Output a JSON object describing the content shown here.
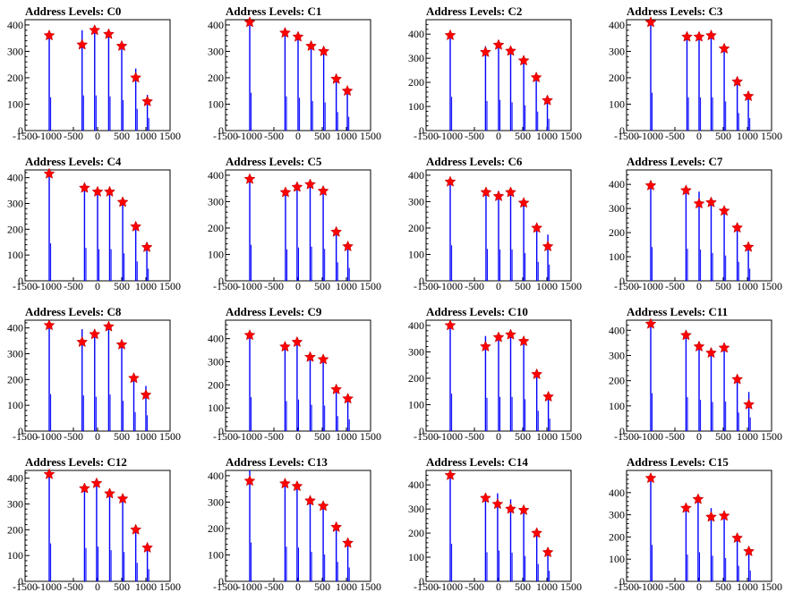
{
  "colors": {
    "frame": "#000000",
    "histogram": "#0000ff",
    "marker": "#ff0000"
  },
  "chart_data": [
    {
      "type": "histogram",
      "title": "Address Levels: C0",
      "xlim": [
        -1500,
        1500
      ],
      "ylim": [
        0,
        420
      ],
      "x_ticks": [
        -1500,
        -1000,
        -500,
        0,
        500,
        1000,
        1500
      ],
      "y_ticks": [
        0,
        100,
        200,
        300,
        400
      ],
      "peaks": [
        {
          "x": -1000,
          "y": 360,
          "h": 360
        },
        {
          "x": -320,
          "y": 325,
          "h": 380
        },
        {
          "x": -60,
          "y": 380,
          "h": 380
        },
        {
          "x": 230,
          "y": 365,
          "h": 370
        },
        {
          "x": 500,
          "y": 320,
          "h": 330
        },
        {
          "x": 790,
          "y": 200,
          "h": 235
        },
        {
          "x": 1030,
          "y": 110,
          "h": 135
        }
      ]
    },
    {
      "type": "histogram",
      "title": "Address Levels: C1",
      "xlim": [
        -1500,
        1500
      ],
      "ylim": [
        0,
        420
      ],
      "x_ticks": [
        -1500,
        -1000,
        -500,
        0,
        500,
        1000,
        1500
      ],
      "y_ticks": [
        0,
        100,
        200,
        300,
        400
      ],
      "peaks": [
        {
          "x": -1000,
          "y": 410,
          "h": 410
        },
        {
          "x": -270,
          "y": 370,
          "h": 370
        },
        {
          "x": 0,
          "y": 355,
          "h": 355
        },
        {
          "x": 270,
          "y": 320,
          "h": 320
        },
        {
          "x": 530,
          "y": 300,
          "h": 305
        },
        {
          "x": 790,
          "y": 195,
          "h": 200
        },
        {
          "x": 1020,
          "y": 150,
          "h": 150
        }
      ]
    },
    {
      "type": "histogram",
      "title": "Address Levels: C2",
      "xlim": [
        -1500,
        1500
      ],
      "ylim": [
        0,
        460
      ],
      "x_ticks": [
        -1500,
        -1000,
        -500,
        0,
        500,
        1000,
        1500
      ],
      "y_ticks": [
        0,
        100,
        200,
        300,
        400
      ],
      "peaks": [
        {
          "x": -1000,
          "y": 395,
          "h": 400
        },
        {
          "x": -270,
          "y": 325,
          "h": 350
        },
        {
          "x": 0,
          "y": 355,
          "h": 365
        },
        {
          "x": 250,
          "y": 330,
          "h": 335
        },
        {
          "x": 520,
          "y": 290,
          "h": 300
        },
        {
          "x": 780,
          "y": 220,
          "h": 225
        },
        {
          "x": 1010,
          "y": 125,
          "h": 140
        }
      ]
    },
    {
      "type": "histogram",
      "title": "Address Levels: C3",
      "xlim": [
        -1500,
        1500
      ],
      "ylim": [
        0,
        420
      ],
      "x_ticks": [
        -1500,
        -1000,
        -500,
        0,
        500,
        1000,
        1500
      ],
      "y_ticks": [
        0,
        100,
        200,
        300,
        400
      ],
      "peaks": [
        {
          "x": -1000,
          "y": 410,
          "h": 410
        },
        {
          "x": -250,
          "y": 355,
          "h": 360
        },
        {
          "x": 0,
          "y": 355,
          "h": 360
        },
        {
          "x": 250,
          "y": 360,
          "h": 360
        },
        {
          "x": 520,
          "y": 310,
          "h": 315
        },
        {
          "x": 790,
          "y": 185,
          "h": 190
        },
        {
          "x": 1020,
          "y": 130,
          "h": 135
        }
      ]
    },
    {
      "type": "histogram",
      "title": "Address Levels: C4",
      "xlim": [
        -1500,
        1500
      ],
      "ylim": [
        0,
        430
      ],
      "x_ticks": [
        -1500,
        -1000,
        -500,
        0,
        500,
        1000,
        1500
      ],
      "y_ticks": [
        0,
        100,
        200,
        300,
        400
      ],
      "peaks": [
        {
          "x": -1000,
          "y": 415,
          "h": 415
        },
        {
          "x": -270,
          "y": 360,
          "h": 365
        },
        {
          "x": 0,
          "y": 345,
          "h": 350
        },
        {
          "x": 250,
          "y": 345,
          "h": 350
        },
        {
          "x": 520,
          "y": 305,
          "h": 305
        },
        {
          "x": 790,
          "y": 210,
          "h": 215
        },
        {
          "x": 1020,
          "y": 130,
          "h": 135
        }
      ]
    },
    {
      "type": "histogram",
      "title": "Address Levels: C5",
      "xlim": [
        -1500,
        1500
      ],
      "ylim": [
        0,
        420
      ],
      "x_ticks": [
        -1500,
        -1000,
        -500,
        0,
        500,
        1000,
        1500
      ],
      "y_ticks": [
        0,
        100,
        200,
        300,
        400
      ],
      "peaks": [
        {
          "x": -1000,
          "y": 385,
          "h": 390
        },
        {
          "x": -260,
          "y": 335,
          "h": 340
        },
        {
          "x": -20,
          "y": 355,
          "h": 360
        },
        {
          "x": 250,
          "y": 365,
          "h": 370
        },
        {
          "x": 520,
          "y": 340,
          "h": 345
        },
        {
          "x": 790,
          "y": 185,
          "h": 200
        },
        {
          "x": 1030,
          "y": 130,
          "h": 140
        }
      ]
    },
    {
      "type": "histogram",
      "title": "Address Levels: C6",
      "xlim": [
        -1500,
        1500
      ],
      "ylim": [
        0,
        420
      ],
      "x_ticks": [
        -1500,
        -1000,
        -500,
        0,
        500,
        1000,
        1500
      ],
      "y_ticks": [
        0,
        100,
        200,
        300,
        400
      ],
      "peaks": [
        {
          "x": -1000,
          "y": 375,
          "h": 385
        },
        {
          "x": -260,
          "y": 335,
          "h": 345
        },
        {
          "x": 0,
          "y": 320,
          "h": 340
        },
        {
          "x": 250,
          "y": 335,
          "h": 340
        },
        {
          "x": 520,
          "y": 295,
          "h": 300
        },
        {
          "x": 790,
          "y": 200,
          "h": 205
        },
        {
          "x": 1020,
          "y": 130,
          "h": 175
        }
      ]
    },
    {
      "type": "histogram",
      "title": "Address Levels: C7",
      "xlim": [
        -1500,
        1500
      ],
      "ylim": [
        0,
        460
      ],
      "x_ticks": [
        -1500,
        -1000,
        -500,
        0,
        500,
        1000,
        1500
      ],
      "y_ticks": [
        0,
        100,
        200,
        300,
        400
      ],
      "peaks": [
        {
          "x": -1000,
          "y": 395,
          "h": 400
        },
        {
          "x": -270,
          "y": 375,
          "h": 380
        },
        {
          "x": 0,
          "y": 320,
          "h": 370
        },
        {
          "x": 250,
          "y": 325,
          "h": 330
        },
        {
          "x": 520,
          "y": 290,
          "h": 300
        },
        {
          "x": 790,
          "y": 220,
          "h": 225
        },
        {
          "x": 1020,
          "y": 140,
          "h": 145
        }
      ]
    },
    {
      "type": "histogram",
      "title": "Address Levels: C8",
      "xlim": [
        -1500,
        1500
      ],
      "ylim": [
        0,
        430
      ],
      "x_ticks": [
        -1500,
        -1000,
        -500,
        0,
        500,
        1000,
        1500
      ],
      "y_ticks": [
        0,
        100,
        200,
        300,
        400
      ],
      "peaks": [
        {
          "x": -1000,
          "y": 410,
          "h": 410
        },
        {
          "x": -320,
          "y": 345,
          "h": 395
        },
        {
          "x": -60,
          "y": 375,
          "h": 380
        },
        {
          "x": 230,
          "y": 405,
          "h": 405
        },
        {
          "x": 500,
          "y": 335,
          "h": 335
        },
        {
          "x": 750,
          "y": 205,
          "h": 210
        },
        {
          "x": 1000,
          "y": 140,
          "h": 175
        }
      ]
    },
    {
      "type": "histogram",
      "title": "Address Levels: C9",
      "xlim": [
        -1500,
        1500
      ],
      "ylim": [
        0,
        480
      ],
      "x_ticks": [
        -1500,
        -1000,
        -500,
        0,
        500,
        1000,
        1500
      ],
      "y_ticks": [
        0,
        100,
        200,
        300,
        400
      ],
      "peaks": [
        {
          "x": -1000,
          "y": 415,
          "h": 420
        },
        {
          "x": -270,
          "y": 365,
          "h": 370
        },
        {
          "x": -20,
          "y": 385,
          "h": 390
        },
        {
          "x": 250,
          "y": 320,
          "h": 325
        },
        {
          "x": 520,
          "y": 310,
          "h": 315
        },
        {
          "x": 790,
          "y": 180,
          "h": 185
        },
        {
          "x": 1030,
          "y": 140,
          "h": 145
        }
      ]
    },
    {
      "type": "histogram",
      "title": "Address Levels: C10",
      "xlim": [
        -1500,
        1500
      ],
      "ylim": [
        0,
        420
      ],
      "x_ticks": [
        -1500,
        -1000,
        -500,
        0,
        500,
        1000,
        1500
      ],
      "y_ticks": [
        0,
        100,
        200,
        300,
        400
      ],
      "peaks": [
        {
          "x": -1000,
          "y": 400,
          "h": 405
        },
        {
          "x": -270,
          "y": 320,
          "h": 360
        },
        {
          "x": 0,
          "y": 355,
          "h": 370
        },
        {
          "x": 250,
          "y": 365,
          "h": 370
        },
        {
          "x": 520,
          "y": 340,
          "h": 345
        },
        {
          "x": 790,
          "y": 215,
          "h": 220
        },
        {
          "x": 1030,
          "y": 130,
          "h": 135
        }
      ]
    },
    {
      "type": "histogram",
      "title": "Address Levels: C11",
      "xlim": [
        -1500,
        1500
      ],
      "ylim": [
        0,
        440
      ],
      "x_ticks": [
        -1500,
        -1000,
        -500,
        0,
        500,
        1000,
        1500
      ],
      "y_ticks": [
        0,
        100,
        200,
        300,
        400
      ],
      "peaks": [
        {
          "x": -1000,
          "y": 425,
          "h": 430
        },
        {
          "x": -270,
          "y": 380,
          "h": 385
        },
        {
          "x": 0,
          "y": 335,
          "h": 355
        },
        {
          "x": 250,
          "y": 310,
          "h": 330
        },
        {
          "x": 520,
          "y": 330,
          "h": 335
        },
        {
          "x": 790,
          "y": 205,
          "h": 210
        },
        {
          "x": 1030,
          "y": 105,
          "h": 155
        }
      ]
    },
    {
      "type": "histogram",
      "title": "Address Levels: C12",
      "xlim": [
        -1500,
        1500
      ],
      "ylim": [
        0,
        430
      ],
      "x_ticks": [
        -1500,
        -1000,
        -500,
        0,
        500,
        1000,
        1500
      ],
      "y_ticks": [
        0,
        100,
        200,
        300,
        400
      ],
      "peaks": [
        {
          "x": -1000,
          "y": 415,
          "h": 420
        },
        {
          "x": -270,
          "y": 360,
          "h": 370
        },
        {
          "x": -20,
          "y": 380,
          "h": 385
        },
        {
          "x": 250,
          "y": 340,
          "h": 345
        },
        {
          "x": 520,
          "y": 320,
          "h": 325
        },
        {
          "x": 790,
          "y": 200,
          "h": 205
        },
        {
          "x": 1030,
          "y": 130,
          "h": 135
        }
      ]
    },
    {
      "type": "histogram",
      "title": "Address Levels: C13",
      "xlim": [
        -1500,
        1500
      ],
      "ylim": [
        0,
        420
      ],
      "x_ticks": [
        -1500,
        -1000,
        -500,
        0,
        500,
        1000,
        1500
      ],
      "y_ticks": [
        0,
        100,
        200,
        300,
        400
      ],
      "peaks": [
        {
          "x": -1000,
          "y": 380,
          "h": 420
        },
        {
          "x": -270,
          "y": 370,
          "h": 375
        },
        {
          "x": -20,
          "y": 360,
          "h": 365
        },
        {
          "x": 250,
          "y": 305,
          "h": 320
        },
        {
          "x": 520,
          "y": 285,
          "h": 290
        },
        {
          "x": 790,
          "y": 205,
          "h": 210
        },
        {
          "x": 1030,
          "y": 145,
          "h": 150
        }
      ]
    },
    {
      "type": "histogram",
      "title": "Address Levels: C14",
      "xlim": [
        -1500,
        1500
      ],
      "ylim": [
        0,
        460
      ],
      "x_ticks": [
        -1500,
        -1000,
        -500,
        0,
        500,
        1000,
        1500
      ],
      "y_ticks": [
        0,
        100,
        200,
        300,
        400
      ],
      "peaks": [
        {
          "x": -1000,
          "y": 440,
          "h": 445
        },
        {
          "x": -270,
          "y": 345,
          "h": 345
        },
        {
          "x": -20,
          "y": 320,
          "h": 365
        },
        {
          "x": 250,
          "y": 300,
          "h": 340
        },
        {
          "x": 520,
          "y": 295,
          "h": 300
        },
        {
          "x": 790,
          "y": 200,
          "h": 205
        },
        {
          "x": 1020,
          "y": 120,
          "h": 125
        }
      ]
    },
    {
      "type": "histogram",
      "title": "Address Levels: C15",
      "xlim": [
        -1500,
        1500
      ],
      "ylim": [
        0,
        500
      ],
      "x_ticks": [
        -1500,
        -1000,
        -500,
        0,
        500,
        1000,
        1500
      ],
      "y_ticks": [
        0,
        100,
        200,
        300,
        400
      ],
      "peaks": [
        {
          "x": -1000,
          "y": 465,
          "h": 470
        },
        {
          "x": -270,
          "y": 330,
          "h": 345
        },
        {
          "x": -20,
          "y": 370,
          "h": 375
        },
        {
          "x": 250,
          "y": 290,
          "h": 330
        },
        {
          "x": 520,
          "y": 295,
          "h": 300
        },
        {
          "x": 790,
          "y": 195,
          "h": 200
        },
        {
          "x": 1030,
          "y": 135,
          "h": 140
        }
      ]
    }
  ]
}
